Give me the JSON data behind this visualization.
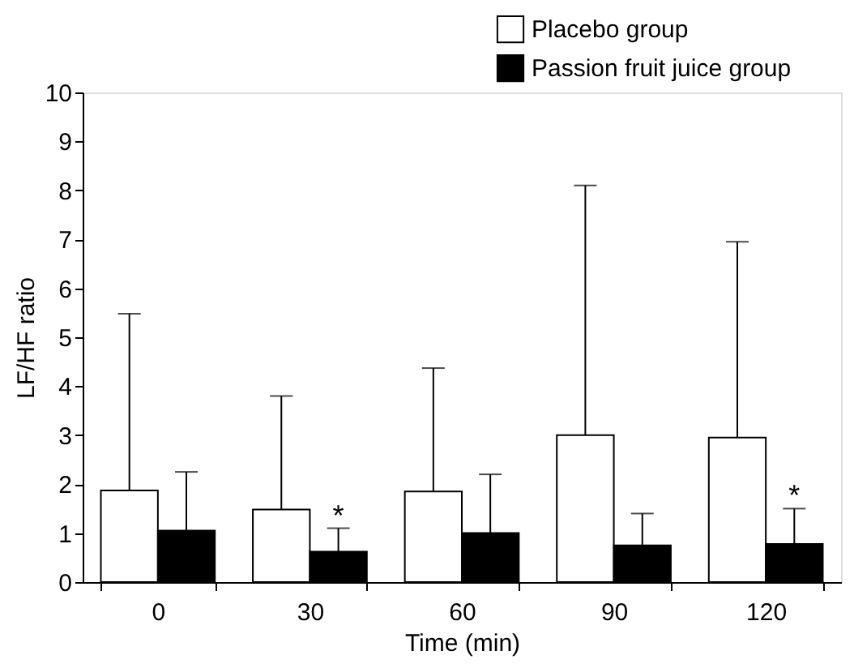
{
  "chart_data": {
    "type": "bar",
    "xlabel": "Time (min)",
    "ylabel": "LF/HF ratio",
    "categories": [
      "0",
      "30",
      "60",
      "90",
      "120"
    ],
    "series": [
      {
        "name": "Placebo group",
        "color": "#ffffff",
        "values": [
          1.87,
          1.48,
          1.85,
          3.0,
          2.95
        ],
        "errors": [
          [
            1.87,
            5.48
          ],
          [
            1.48,
            3.8
          ],
          [
            1.85,
            4.37
          ],
          [
            3.0,
            8.1
          ],
          [
            2.95,
            6.95
          ]
        ]
      },
      {
        "name": "Passion fruit juice group",
        "color": "#000000",
        "values": [
          1.05,
          0.62,
          1.0,
          0.75,
          0.78
        ],
        "errors": [
          [
            1.05,
            2.25
          ],
          [
            0.62,
            1.1
          ],
          [
            1.0,
            2.2
          ],
          [
            0.75,
            1.4
          ],
          [
            0.78,
            1.5
          ]
        ]
      }
    ],
    "annotations": [
      {
        "text": "*",
        "x": "30",
        "y": 1.1
      },
      {
        "text": "*",
        "x": "120",
        "y": 1.5
      }
    ],
    "ylim": [
      0,
      10
    ],
    "yticks": [
      0,
      1,
      2,
      3,
      4,
      5,
      6,
      7,
      8,
      9,
      10
    ],
    "grid": false,
    "legend": "top right"
  }
}
